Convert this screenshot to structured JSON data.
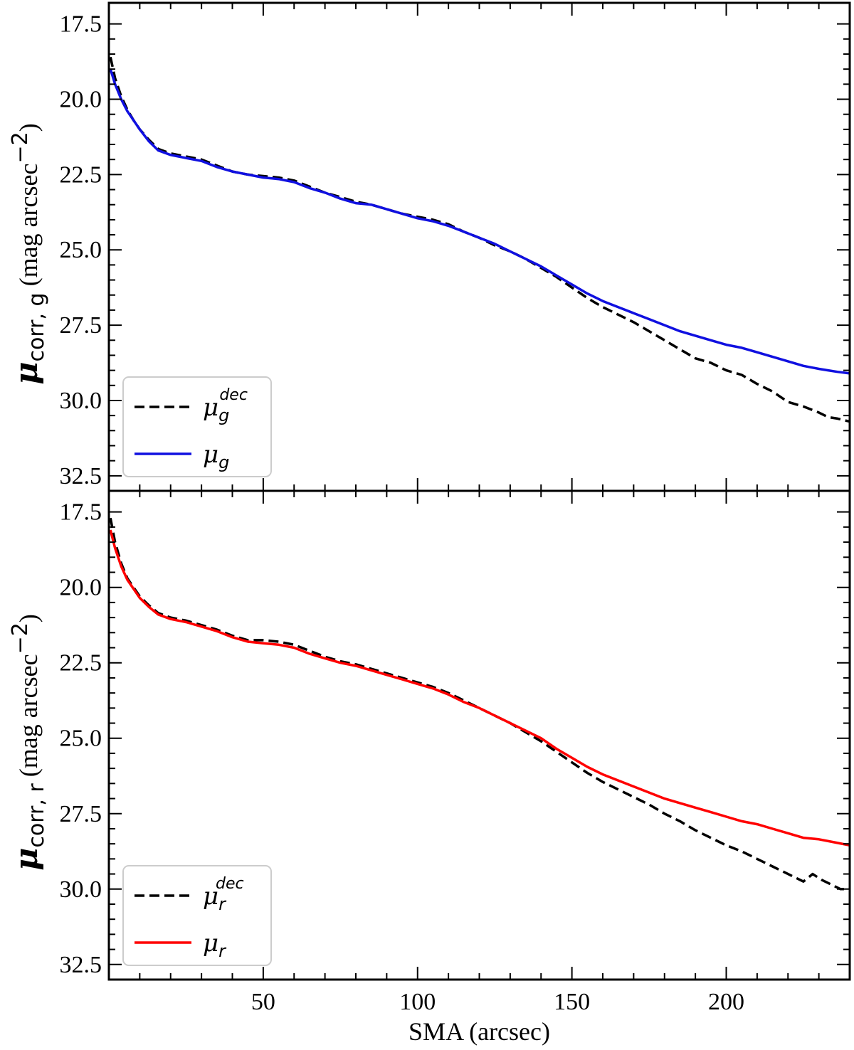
{
  "chart_data": [
    {
      "type": "line",
      "panel": "top",
      "ylabel": {
        "symbol": "μ",
        "subscript": "corr, g",
        "unit": "(mag arcsec",
        "exponent": "−2",
        "close": ")"
      },
      "xlim": [
        0,
        240
      ],
      "ylim": [
        33.0,
        16.8
      ],
      "y_inverted": true,
      "yticks": [
        "17.5",
        "20.0",
        "22.5",
        "25.0",
        "27.5",
        "30.0",
        "32.5"
      ],
      "xticks": [
        "50",
        "100",
        "150",
        "200"
      ],
      "legend_position": "lower-left",
      "series": [
        {
          "legend_symbol": "μ",
          "legend_sub": "g",
          "legend_sup": "dec",
          "color": "#000000",
          "style": "dashed",
          "x": [
            0.5,
            2,
            4,
            6,
            8,
            10,
            13,
            16,
            20,
            25,
            30,
            35,
            40,
            45,
            50,
            55,
            60,
            65,
            70,
            75,
            80,
            85,
            90,
            95,
            100,
            105,
            110,
            115,
            120,
            125,
            130,
            135,
            140,
            145,
            150,
            155,
            160,
            165,
            170,
            175,
            180,
            185,
            190,
            195,
            200,
            205,
            210,
            215,
            220,
            225,
            230,
            233,
            236,
            240
          ],
          "y": [
            18.6,
            19.3,
            19.9,
            20.35,
            20.7,
            21.0,
            21.35,
            21.65,
            21.8,
            21.9,
            22.0,
            22.2,
            22.4,
            22.5,
            22.55,
            22.6,
            22.7,
            22.9,
            23.1,
            23.25,
            23.4,
            23.5,
            23.65,
            23.8,
            23.9,
            24.0,
            24.15,
            24.4,
            24.6,
            24.85,
            25.05,
            25.3,
            25.6,
            25.9,
            26.25,
            26.6,
            26.9,
            27.15,
            27.4,
            27.7,
            28.0,
            28.3,
            28.6,
            28.75,
            29.0,
            29.15,
            29.45,
            29.7,
            30.05,
            30.2,
            30.4,
            30.55,
            30.6,
            30.7
          ]
        },
        {
          "legend_symbol": "μ",
          "legend_sub": "g",
          "legend_sup": "",
          "color": "#1010e0",
          "style": "solid",
          "x": [
            0.5,
            2,
            4,
            6,
            8,
            10,
            13,
            16,
            20,
            25,
            30,
            35,
            40,
            45,
            50,
            55,
            60,
            65,
            70,
            75,
            80,
            85,
            90,
            95,
            100,
            105,
            110,
            115,
            120,
            125,
            130,
            135,
            140,
            145,
            150,
            155,
            160,
            165,
            170,
            175,
            180,
            185,
            190,
            195,
            200,
            205,
            210,
            215,
            220,
            225,
            230,
            233,
            236,
            240
          ],
          "y": [
            19.0,
            19.5,
            20.0,
            20.4,
            20.7,
            21.0,
            21.4,
            21.7,
            21.85,
            21.95,
            22.05,
            22.25,
            22.4,
            22.5,
            22.6,
            22.65,
            22.75,
            22.95,
            23.1,
            23.3,
            23.45,
            23.5,
            23.65,
            23.8,
            23.95,
            24.05,
            24.2,
            24.4,
            24.6,
            24.8,
            25.05,
            25.3,
            25.55,
            25.85,
            26.15,
            26.45,
            26.7,
            26.9,
            27.1,
            27.3,
            27.5,
            27.7,
            27.85,
            28.0,
            28.15,
            28.25,
            28.4,
            28.55,
            28.7,
            28.85,
            28.95,
            29.0,
            29.05,
            29.1
          ]
        }
      ]
    },
    {
      "type": "line",
      "panel": "bottom",
      "ylabel": {
        "symbol": "μ",
        "subscript": "corr, r",
        "unit": "(mag arcsec",
        "exponent": "−2",
        "close": ")"
      },
      "xlabel": "SMA (arcsec)",
      "xlim": [
        0,
        240
      ],
      "ylim": [
        33.0,
        16.8
      ],
      "y_inverted": true,
      "yticks": [
        "17.5",
        "20.0",
        "22.5",
        "25.0",
        "27.5",
        "30.0",
        "32.5"
      ],
      "xticks": [
        "50",
        "100",
        "150",
        "200"
      ],
      "legend_position": "lower-left",
      "series": [
        {
          "legend_symbol": "μ",
          "legend_sub": "r",
          "legend_sup": "dec",
          "color": "#000000",
          "style": "dashed",
          "x": [
            0.5,
            2,
            4,
            6,
            8,
            10,
            13,
            16,
            20,
            25,
            30,
            35,
            40,
            45,
            50,
            55,
            60,
            65,
            70,
            75,
            80,
            85,
            90,
            95,
            100,
            105,
            110,
            115,
            120,
            125,
            130,
            135,
            140,
            145,
            150,
            155,
            160,
            165,
            170,
            175,
            180,
            185,
            190,
            195,
            200,
            205,
            210,
            215,
            220,
            225,
            228,
            231,
            234,
            237,
            240
          ],
          "y": [
            17.7,
            18.5,
            19.2,
            19.7,
            20.0,
            20.3,
            20.6,
            20.85,
            21.0,
            21.1,
            21.25,
            21.4,
            21.6,
            21.75,
            21.75,
            21.8,
            21.9,
            22.1,
            22.3,
            22.45,
            22.55,
            22.7,
            22.85,
            23.0,
            23.15,
            23.3,
            23.5,
            23.75,
            24.0,
            24.25,
            24.5,
            24.8,
            25.1,
            25.45,
            25.8,
            26.15,
            26.45,
            26.7,
            26.95,
            27.2,
            27.5,
            27.75,
            28.05,
            28.3,
            28.55,
            28.75,
            29.0,
            29.25,
            29.5,
            29.75,
            29.5,
            29.7,
            29.85,
            30.0,
            30.0
          ]
        },
        {
          "legend_symbol": "μ",
          "legend_sub": "r",
          "legend_sup": "",
          "color": "#ff0000",
          "style": "solid",
          "x": [
            0.5,
            2,
            4,
            6,
            8,
            10,
            13,
            16,
            20,
            25,
            30,
            35,
            40,
            45,
            50,
            55,
            60,
            65,
            70,
            75,
            80,
            85,
            90,
            95,
            100,
            105,
            110,
            115,
            120,
            125,
            130,
            135,
            140,
            145,
            150,
            155,
            160,
            165,
            170,
            175,
            180,
            185,
            190,
            195,
            200,
            205,
            210,
            215,
            220,
            225,
            230,
            235,
            240
          ],
          "y": [
            18.1,
            18.7,
            19.3,
            19.75,
            20.05,
            20.35,
            20.65,
            20.9,
            21.05,
            21.15,
            21.3,
            21.45,
            21.65,
            21.8,
            21.85,
            21.9,
            22.0,
            22.2,
            22.35,
            22.5,
            22.6,
            22.75,
            22.9,
            23.05,
            23.2,
            23.35,
            23.55,
            23.8,
            24.0,
            24.25,
            24.5,
            24.75,
            25.0,
            25.35,
            25.65,
            25.95,
            26.2,
            26.4,
            26.6,
            26.8,
            27.0,
            27.15,
            27.3,
            27.45,
            27.6,
            27.75,
            27.85,
            28.0,
            28.15,
            28.3,
            28.35,
            28.45,
            28.55
          ]
        }
      ]
    }
  ]
}
